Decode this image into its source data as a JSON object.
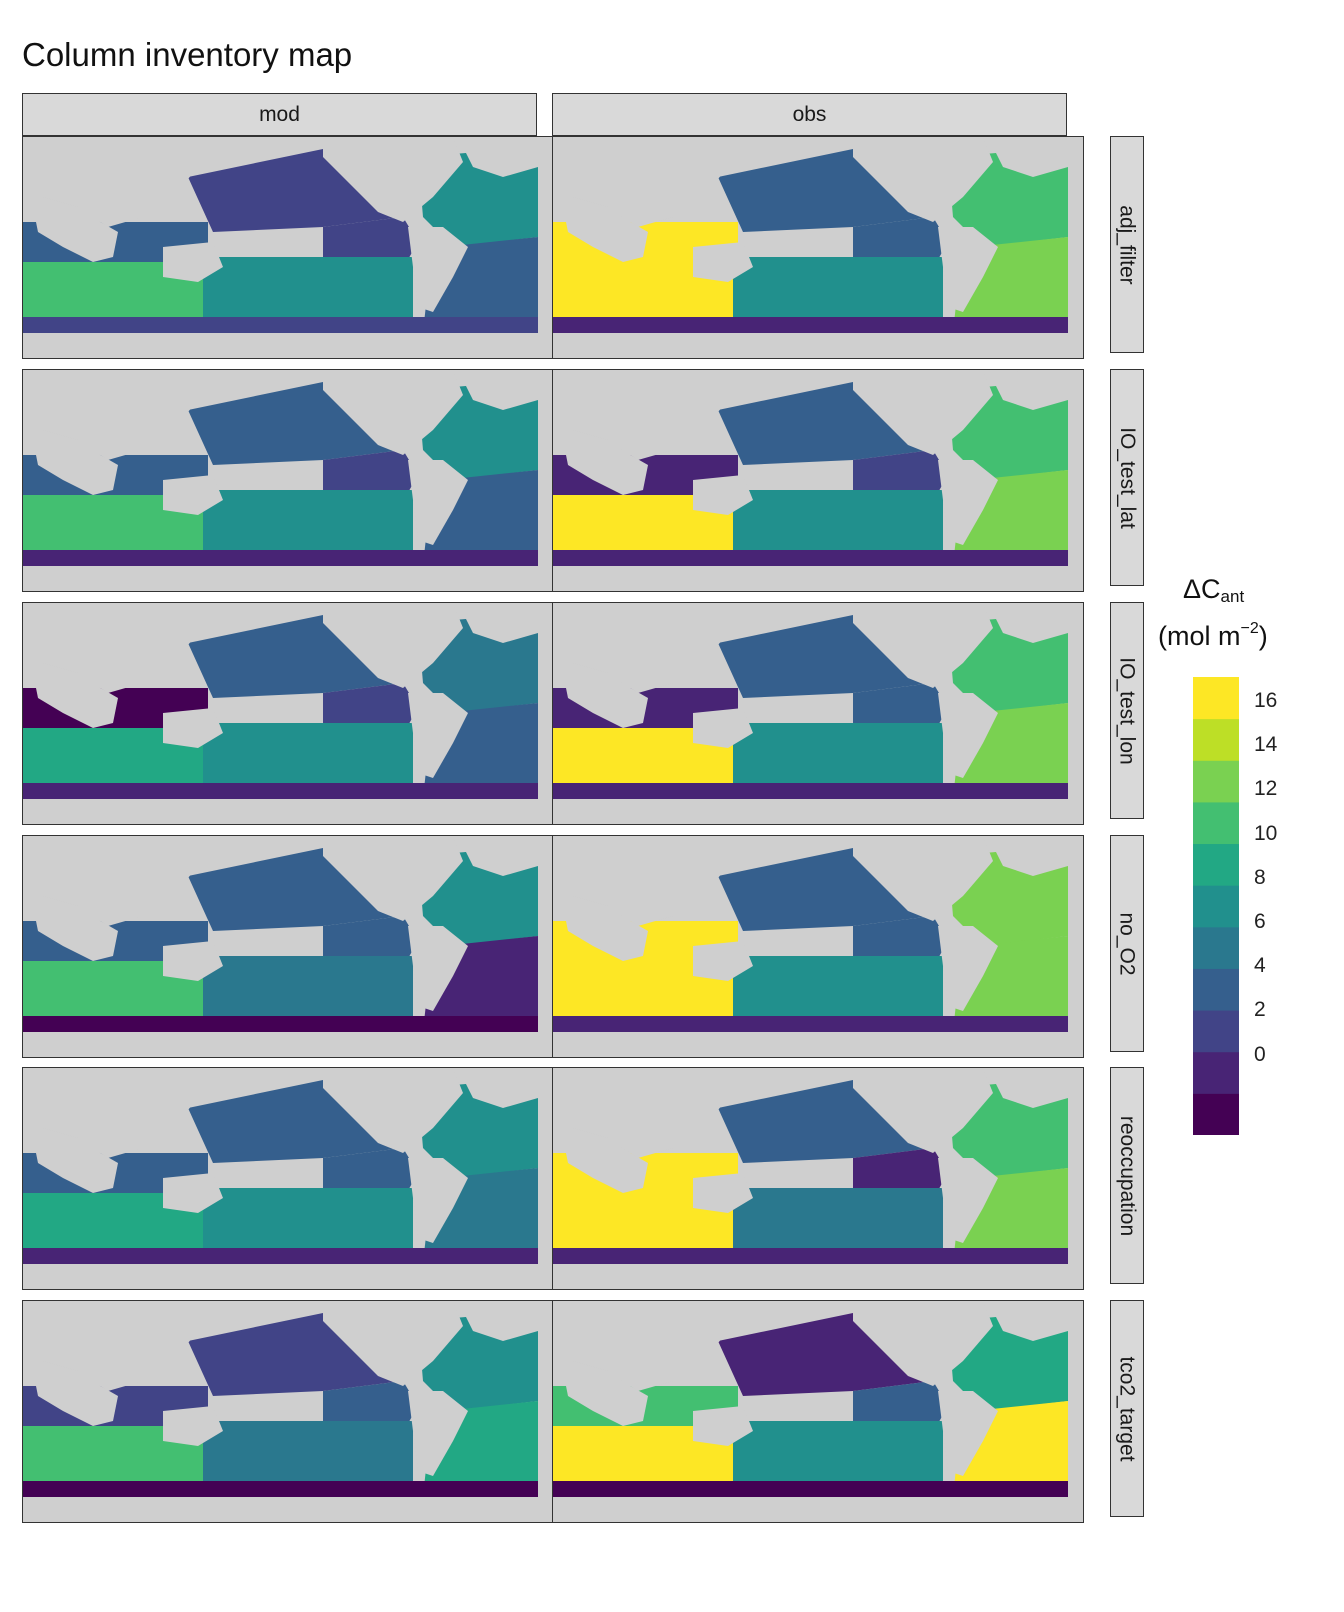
{
  "title": "Column inventory map",
  "columns": [
    "mod",
    "obs"
  ],
  "rows": [
    "adj_filter",
    "IO_test_lat",
    "IO_test_lon",
    "no_O2",
    "reoccupation",
    "tco2_target"
  ],
  "legend": {
    "title_main": "ΔC",
    "title_sub": "ant",
    "units_pre": "(mol m",
    "units_sup": "−2",
    "units_post": ")",
    "ticks": [
      "16",
      "14",
      "12",
      "10",
      "8",
      "6",
      "4",
      "2",
      "0"
    ]
  },
  "colors": {
    "land": "#cfcfcf",
    "strip": "#d9d9d9",
    "scale": [
      "#440154",
      "#482475",
      "#414487",
      "#355f8d",
      "#2a788e",
      "#21908d",
      "#22a884",
      "#43bf71",
      "#7ad151",
      "#bddf26",
      "#fde725"
    ]
  },
  "panels": {
    "mod": [
      {
        "row": "adj_filter",
        "levels": {
          "ind_n": 3,
          "ind_s": 7,
          "pac_n": 2,
          "pac_e": 2,
          "pac_s": 5,
          "atl_n": 5,
          "atl_s": 3,
          "so": 2
        }
      },
      {
        "row": "IO_test_lat",
        "levels": {
          "ind_n": 3,
          "ind_s": 7,
          "pac_n": 3,
          "pac_e": 2,
          "pac_s": 5,
          "atl_n": 5,
          "atl_s": 3,
          "so": 1
        }
      },
      {
        "row": "IO_test_lon",
        "levels": {
          "ind_n": 0,
          "ind_s": 6,
          "pac_n": 3,
          "pac_e": 2,
          "pac_s": 5,
          "atl_n": 4,
          "atl_s": 3,
          "so": 1
        }
      },
      {
        "row": "no_O2",
        "levels": {
          "ind_n": 3,
          "ind_s": 7,
          "pac_n": 3,
          "pac_e": 3,
          "pac_s": 4,
          "atl_n": 5,
          "atl_s": 1,
          "so": 0
        }
      },
      {
        "row": "reoccupation",
        "levels": {
          "ind_n": 3,
          "ind_s": 6,
          "pac_n": 3,
          "pac_e": 3,
          "pac_s": 5,
          "atl_n": 5,
          "atl_s": 4,
          "so": 1
        }
      },
      {
        "row": "tco2_target",
        "levels": {
          "ind_n": 2,
          "ind_s": 7,
          "pac_n": 2,
          "pac_e": 3,
          "pac_s": 4,
          "atl_n": 5,
          "atl_s": 6,
          "so": 0
        }
      }
    ],
    "obs": [
      {
        "row": "adj_filter",
        "levels": {
          "ind_n": 10,
          "ind_s": 10,
          "pac_n": 3,
          "pac_e": 3,
          "pac_s": 5,
          "atl_n": 7,
          "atl_s": 8,
          "so": 1
        }
      },
      {
        "row": "IO_test_lat",
        "levels": {
          "ind_n": 1,
          "ind_s": 10,
          "pac_n": 3,
          "pac_e": 2,
          "pac_s": 5,
          "atl_n": 7,
          "atl_s": 8,
          "so": 1
        }
      },
      {
        "row": "IO_test_lon",
        "levels": {
          "ind_n": 1,
          "ind_s": 10,
          "pac_n": 3,
          "pac_e": 3,
          "pac_s": 5,
          "atl_n": 7,
          "atl_s": 8,
          "so": 1
        }
      },
      {
        "row": "no_O2",
        "levels": {
          "ind_n": 10,
          "ind_s": 10,
          "pac_n": 3,
          "pac_e": 3,
          "pac_s": 5,
          "atl_n": 8,
          "atl_s": 8,
          "so": 1
        }
      },
      {
        "row": "reoccupation",
        "levels": {
          "ind_n": 10,
          "ind_s": 10,
          "pac_n": 3,
          "pac_e": 1,
          "pac_s": 4,
          "atl_n": 7,
          "atl_s": 8,
          "so": 1
        }
      },
      {
        "row": "tco2_target",
        "levels": {
          "ind_n": 7,
          "ind_s": 10,
          "pac_n": 1,
          "pac_e": 3,
          "pac_s": 5,
          "atl_n": 6,
          "atl_s": 10,
          "so": 0
        }
      }
    ]
  }
}
